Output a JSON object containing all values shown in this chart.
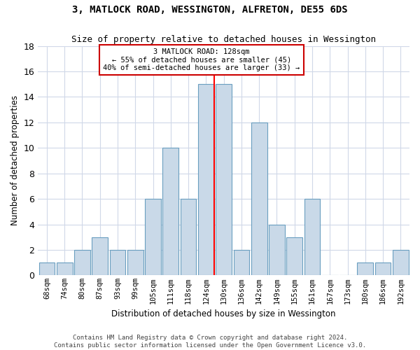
{
  "title": "3, MATLOCK ROAD, WESSINGTON, ALFRETON, DE55 6DS",
  "subtitle": "Size of property relative to detached houses in Wessington",
  "xlabel": "Distribution of detached houses by size in Wessington",
  "ylabel": "Number of detached properties",
  "categories": [
    "68sqm",
    "74sqm",
    "80sqm",
    "87sqm",
    "93sqm",
    "99sqm",
    "105sqm",
    "111sqm",
    "118sqm",
    "124sqm",
    "130sqm",
    "136sqm",
    "142sqm",
    "149sqm",
    "155sqm",
    "161sqm",
    "167sqm",
    "173sqm",
    "180sqm",
    "186sqm",
    "192sqm"
  ],
  "values": [
    1,
    1,
    2,
    3,
    2,
    2,
    6,
    10,
    6,
    15,
    15,
    2,
    12,
    4,
    3,
    6,
    0,
    0,
    1,
    1,
    2
  ],
  "bar_color": "#c9d9e8",
  "bar_edge_color": "#6a9fc0",
  "red_line_index": 9,
  "ylim": [
    0,
    18
  ],
  "yticks": [
    0,
    2,
    4,
    6,
    8,
    10,
    12,
    14,
    16,
    18
  ],
  "annotation_text": "3 MATLOCK ROAD: 128sqm\n← 55% of detached houses are smaller (45)\n40% of semi-detached houses are larger (33) →",
  "annotation_box_color": "#ffffff",
  "annotation_box_edge_color": "#cc0000",
  "footer_text": "Contains HM Land Registry data © Crown copyright and database right 2024.\nContains public sector information licensed under the Open Government Licence v3.0.",
  "bg_color": "#ffffff",
  "grid_color": "#d0d8e8"
}
